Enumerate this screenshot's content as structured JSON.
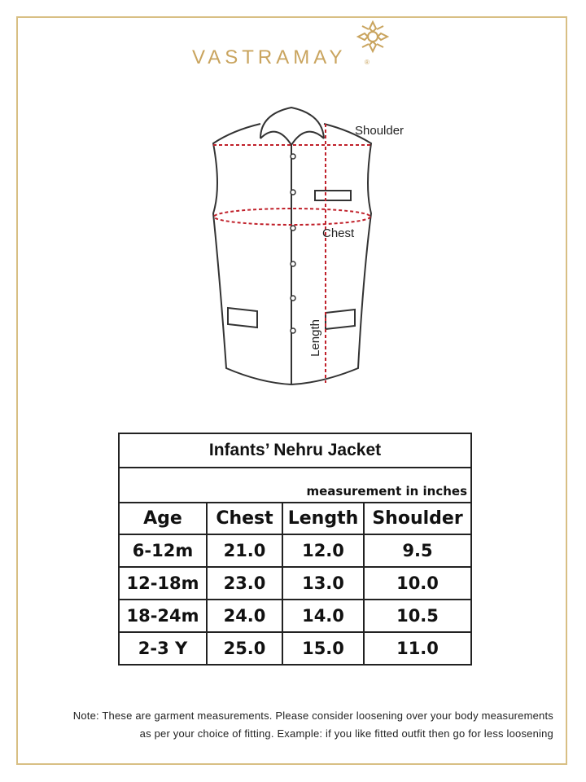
{
  "brand": {
    "name": "VASTRAMAY",
    "registered": "®",
    "color": "#c9a45e"
  },
  "diagram": {
    "labels": {
      "shoulder": "Shoulder",
      "chest": "Chest",
      "length": "Length"
    },
    "measure_line_color": "#c0202a"
  },
  "table": {
    "title": "Infants’ Nehru Jacket",
    "subtitle": "measurement in inches",
    "headers": [
      "Age",
      "Chest",
      "Length",
      "Shoulder"
    ],
    "rows": [
      [
        "6-12m",
        "21.0",
        "12.0",
        "9.5"
      ],
      [
        "12-18m",
        "23.0",
        "13.0",
        "10.0"
      ],
      [
        "18-24m",
        "24.0",
        "14.0",
        "10.5"
      ],
      [
        "2-3 Y",
        "25.0",
        "15.0",
        "11.0"
      ]
    ]
  },
  "note": {
    "line1": "Note: These are garment measurements. Please consider loosening over your body measurements",
    "line2": "as per your choice of fitting. Example: if you like fitted outfit then go for less loosening"
  }
}
